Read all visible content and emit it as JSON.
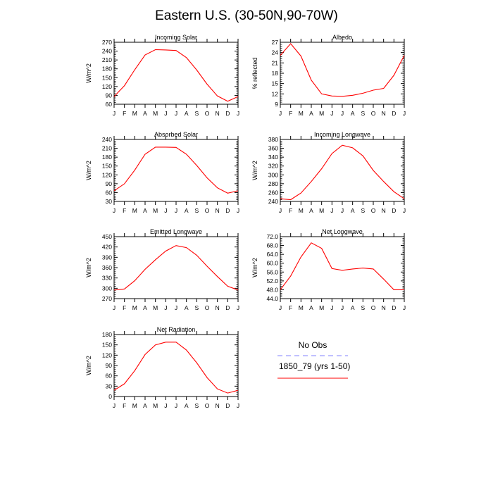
{
  "figure": {
    "title": "Eastern U.S. (30-50N,90-70W)"
  },
  "colors": {
    "model_line": "#ff0000",
    "obs_line": "#8080ff",
    "axis": "#000000"
  },
  "legend": {
    "obs_label": "No Obs",
    "model_label": "1850_79 (yrs 1-50)"
  },
  "chart_data": [
    {
      "type": "line",
      "title": "Incoming Solar",
      "xlabel": "",
      "ylabel": "W/m^2",
      "categories": [
        "J",
        "F",
        "M",
        "A",
        "M",
        "J",
        "J",
        "A",
        "S",
        "O",
        "N",
        "D",
        "J"
      ],
      "ylim": [
        60,
        270
      ],
      "yticks": [
        60,
        90,
        120,
        150,
        180,
        210,
        240,
        270
      ],
      "ytick_labels": [
        "60",
        "90",
        "120",
        "150",
        "180",
        "210",
        "240",
        "270"
      ],
      "series": [
        {
          "values": [
            86,
            123,
            177,
            227,
            245,
            244,
            242,
            218,
            176,
            128,
            88,
            70,
            86
          ]
        }
      ]
    },
    {
      "type": "line",
      "title": "Albedo",
      "xlabel": "",
      "ylabel": "% reflected",
      "categories": [
        "J",
        "F",
        "M",
        "A",
        "M",
        "J",
        "J",
        "A",
        "S",
        "O",
        "N",
        "D",
        "J"
      ],
      "ylim": [
        9,
        27
      ],
      "yticks": [
        9,
        12,
        15,
        18,
        21,
        24,
        27
      ],
      "ytick_labels": [
        "9",
        "12",
        "15",
        "18",
        "21",
        "24",
        "27"
      ],
      "series": [
        {
          "values": [
            23.2,
            26.6,
            23.0,
            16.0,
            12.0,
            11.4,
            11.3,
            11.6,
            12.2,
            13.1,
            13.6,
            17.4,
            23.2
          ]
        }
      ]
    },
    {
      "type": "line",
      "title": "Absorbed Solar",
      "xlabel": "",
      "ylabel": "W/m^2",
      "categories": [
        "J",
        "F",
        "M",
        "A",
        "M",
        "J",
        "J",
        "A",
        "S",
        "O",
        "N",
        "D",
        "J"
      ],
      "ylim": [
        30,
        240
      ],
      "yticks": [
        30,
        60,
        90,
        120,
        150,
        180,
        210,
        240
      ],
      "ytick_labels": [
        "30",
        "60",
        "90",
        "120",
        "150",
        "180",
        "210",
        "240"
      ],
      "series": [
        {
          "values": [
            66,
            90,
            136,
            190,
            214,
            214,
            213,
            190,
            152,
            110,
            76,
            58,
            66
          ]
        }
      ]
    },
    {
      "type": "line",
      "title": "Incoming Longwave",
      "xlabel": "",
      "ylabel": "W/m^2",
      "categories": [
        "J",
        "F",
        "M",
        "A",
        "M",
        "J",
        "J",
        "A",
        "S",
        "O",
        "N",
        "D",
        "J"
      ],
      "ylim": [
        240,
        380
      ],
      "yticks": [
        240,
        260,
        280,
        300,
        320,
        340,
        360,
        380
      ],
      "ytick_labels": [
        "240",
        "260",
        "280",
        "300",
        "320",
        "340",
        "360",
        "380"
      ],
      "series": [
        {
          "values": [
            246,
            244,
            259,
            285,
            314,
            348,
            367,
            361,
            343,
            310,
            285,
            262,
            246
          ]
        }
      ]
    },
    {
      "type": "line",
      "title": "Emitted Longwave",
      "xlabel": "",
      "ylabel": "W/m^2",
      "categories": [
        "J",
        "F",
        "M",
        "A",
        "M",
        "J",
        "J",
        "A",
        "S",
        "O",
        "N",
        "D",
        "J"
      ],
      "ylim": [
        270,
        450
      ],
      "yticks": [
        270,
        300,
        330,
        360,
        390,
        420,
        450
      ],
      "ytick_labels": [
        "270",
        "300",
        "330",
        "360",
        "390",
        "420",
        "450"
      ],
      "series": [
        {
          "values": [
            295,
            298,
            322,
            355,
            383,
            408,
            424,
            418,
            396,
            364,
            334,
            306,
            295
          ]
        }
      ]
    },
    {
      "type": "line",
      "title": "Net Longwave",
      "xlabel": "",
      "ylabel": "W/m^2",
      "categories": [
        "J",
        "F",
        "M",
        "A",
        "M",
        "J",
        "J",
        "A",
        "S",
        "O",
        "N",
        "D",
        "J"
      ],
      "ylim": [
        44,
        72
      ],
      "yticks": [
        44,
        48,
        52,
        56,
        60,
        64,
        68,
        72
      ],
      "ytick_labels": [
        "44.0",
        "48.0",
        "52.0",
        "56.0",
        "60.0",
        "64.0",
        "68.0",
        "72.0"
      ],
      "series": [
        {
          "values": [
            48.0,
            54.2,
            62.8,
            69.2,
            66.7,
            57.6,
            56.8,
            57.4,
            57.8,
            57.4,
            52.8,
            48.0,
            48.0
          ]
        }
      ]
    },
    {
      "type": "line",
      "title": "Net Radiation",
      "xlabel": "",
      "ylabel": "W/m^2",
      "categories": [
        "J",
        "F",
        "M",
        "A",
        "M",
        "J",
        "J",
        "A",
        "S",
        "O",
        "N",
        "D",
        "J"
      ],
      "ylim": [
        0,
        180
      ],
      "yticks": [
        0,
        30,
        60,
        90,
        120,
        150,
        180
      ],
      "ytick_labels": [
        "0",
        "30",
        "60",
        "90",
        "120",
        "150",
        "180"
      ],
      "series": [
        {
          "values": [
            18,
            37,
            75,
            122,
            150,
            158,
            158,
            135,
            98,
            55,
            22,
            10,
            18
          ]
        }
      ]
    }
  ]
}
